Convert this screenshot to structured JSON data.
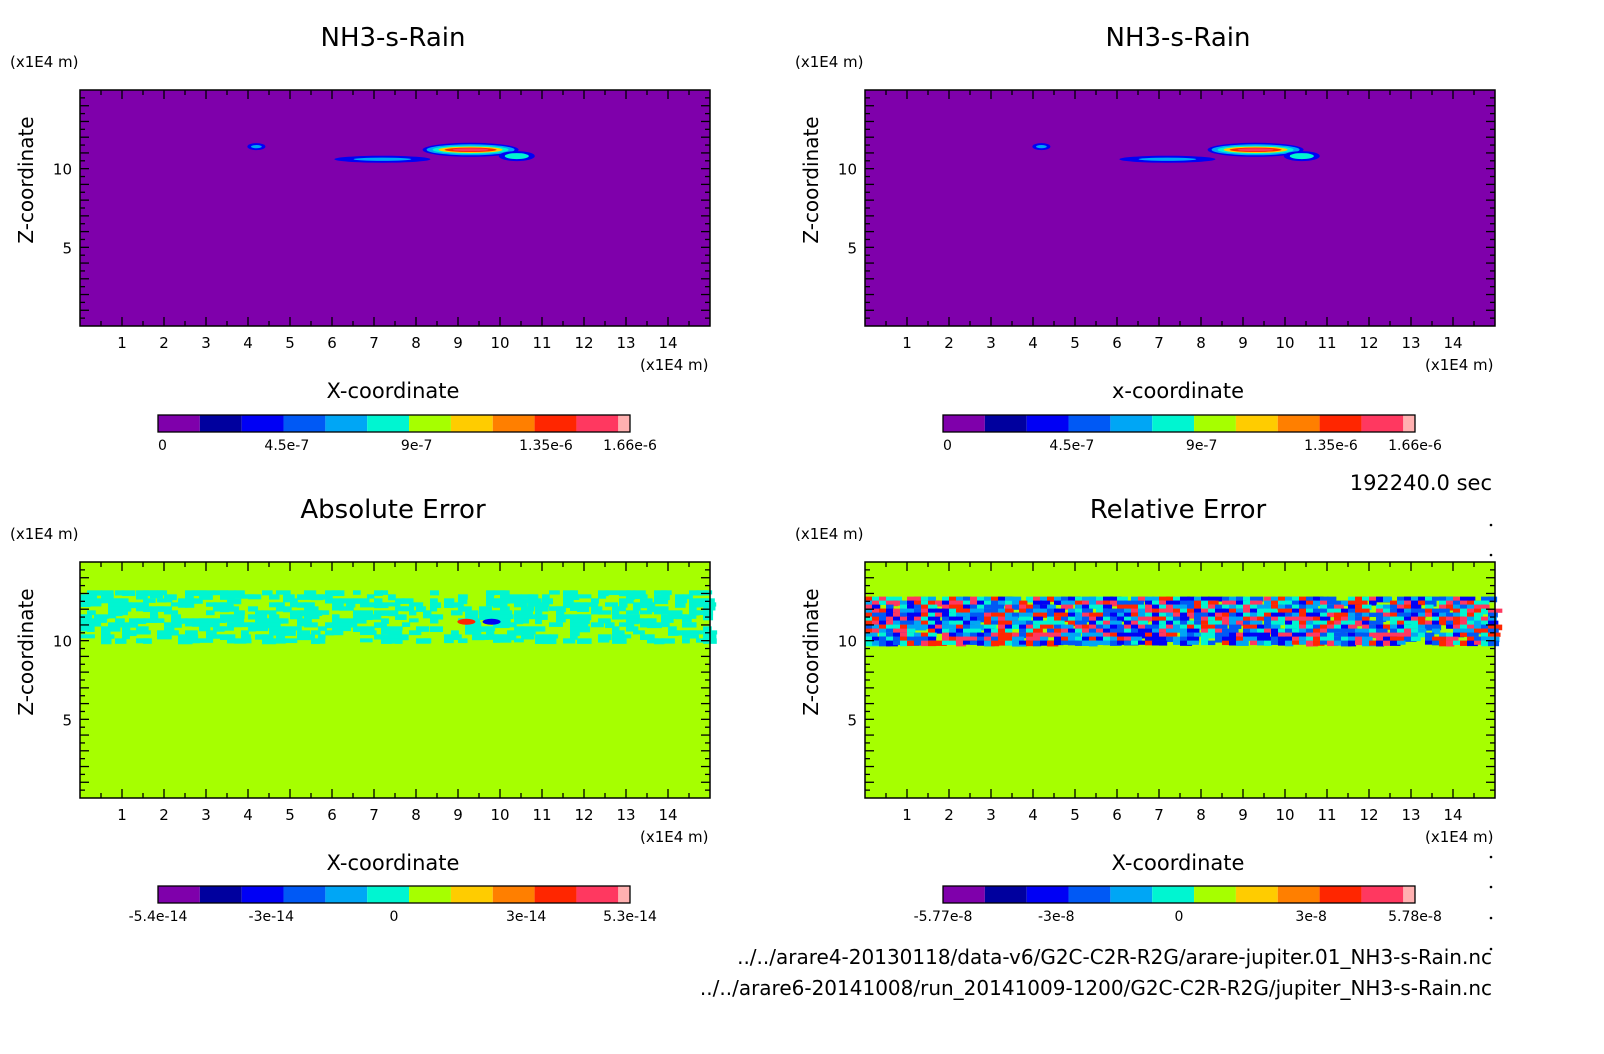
{
  "palette": [
    "#7f00ab",
    "#00009e",
    "#0000f5",
    "#0059f5",
    "#00a6f5",
    "#00f5d1",
    "#a6ff00",
    "#ffcc00",
    "#ff7f00",
    "#ff2600",
    "#ff3860",
    "#ffb0b0"
  ],
  "field_color": {
    "uniform": "#7f00ab",
    "zero": "#a6ff00"
  },
  "time_label": "192240.0 sec",
  "files": [
    "../../arare4-20130118/data-v6/G2C-C2R-R2G/arare-jupiter.01_NH3-s-Rain.nc",
    "../../arare6-20141008/run_20141009-1200/G2C-C2R-R2G/jupiter_NH3-s-Rain.nc"
  ],
  "chart_data": [
    {
      "type": "heatmap",
      "title": "NH3-s-Rain",
      "xlabel": "X-coordinate",
      "ylabel": "Z-coordinate",
      "xunit": "(x1E4 m)",
      "yunit": "(x1E4 m)",
      "xlim": [
        0,
        15
      ],
      "ylim": [
        0,
        15
      ],
      "xticks": [
        "1",
        "2",
        "3",
        "4",
        "5",
        "6",
        "7",
        "8",
        "9",
        "10",
        "11",
        "12",
        "13",
        "14"
      ],
      "yticks": [
        "5",
        "10"
      ],
      "colorbar": {
        "ticks": [
          "0",
          "4.5e-7",
          "9e-7",
          "1.35e-6",
          "1.66e-6"
        ]
      },
      "features": [
        {
          "x": 4.2,
          "z": 11.4,
          "level": 2
        },
        {
          "x": 7.2,
          "z": 10.6,
          "level": 2
        },
        {
          "x": 9.3,
          "z": 11.2,
          "level": 10
        },
        {
          "x": 10.4,
          "z": 10.8,
          "level": 5
        }
      ]
    },
    {
      "type": "heatmap",
      "title": "NH3-s-Rain",
      "xlabel": "x-coordinate",
      "ylabel": "Z-coordinate",
      "xunit": "(x1E4 m)",
      "yunit": "(x1E4 m)",
      "xlim": [
        0,
        15
      ],
      "ylim": [
        0,
        15
      ],
      "xticks": [
        "1",
        "2",
        "3",
        "4",
        "5",
        "6",
        "7",
        "8",
        "9",
        "10",
        "11",
        "12",
        "13",
        "14"
      ],
      "yticks": [
        "5",
        "10"
      ],
      "colorbar": {
        "ticks": [
          "0",
          "4.5e-7",
          "9e-7",
          "1.35e-6",
          "1.66e-6"
        ]
      },
      "features": [
        {
          "x": 4.2,
          "z": 11.4,
          "level": 2
        },
        {
          "x": 7.2,
          "z": 10.6,
          "level": 2
        },
        {
          "x": 9.3,
          "z": 11.2,
          "level": 10
        },
        {
          "x": 10.4,
          "z": 10.8,
          "level": 5
        }
      ]
    },
    {
      "type": "heatmap",
      "title": "Absolute Error",
      "xlabel": "X-coordinate",
      "ylabel": "Z-coordinate",
      "xunit": "(x1E4 m)",
      "yunit": "(x1E4 m)",
      "xlim": [
        0,
        15
      ],
      "ylim": [
        0,
        15
      ],
      "xticks": [
        "1",
        "2",
        "3",
        "4",
        "5",
        "6",
        "7",
        "8",
        "9",
        "10",
        "11",
        "12",
        "13",
        "14"
      ],
      "yticks": [
        "5",
        "10"
      ],
      "colorbar": {
        "ticks": [
          "-5.4e-14",
          "-3e-14",
          "0",
          "3e-14",
          "5.3e-14"
        ]
      },
      "noise_band": {
        "z_min": 10.0,
        "z_max": 13.2,
        "levels": [
          5
        ],
        "density": 0.45
      },
      "features": [
        {
          "x": 9.2,
          "z": 11.2,
          "level": 9
        },
        {
          "x": 9.8,
          "z": 11.2,
          "level": 2
        }
      ]
    },
    {
      "type": "heatmap",
      "title": "Relative Error",
      "xlabel": "X-coordinate",
      "ylabel": "Z-coordinate",
      "xunit": "(x1E4 m)",
      "yunit": "(x1E4 m)",
      "xlim": [
        0,
        15
      ],
      "ylim": [
        0,
        15
      ],
      "xticks": [
        "1",
        "2",
        "3",
        "4",
        "5",
        "6",
        "7",
        "8",
        "9",
        "10",
        "11",
        "12",
        "13",
        "14"
      ],
      "yticks": [
        "5",
        "10"
      ],
      "colorbar": {
        "ticks": [
          "-5.77e-8",
          "-3e-8",
          "0",
          "3e-8",
          "5.78e-8"
        ]
      },
      "noise_band": {
        "z_min": 10.0,
        "z_max": 12.8,
        "levels": [
          2,
          3,
          4,
          5,
          9,
          10
        ],
        "density": 0.9
      },
      "features": []
    }
  ]
}
